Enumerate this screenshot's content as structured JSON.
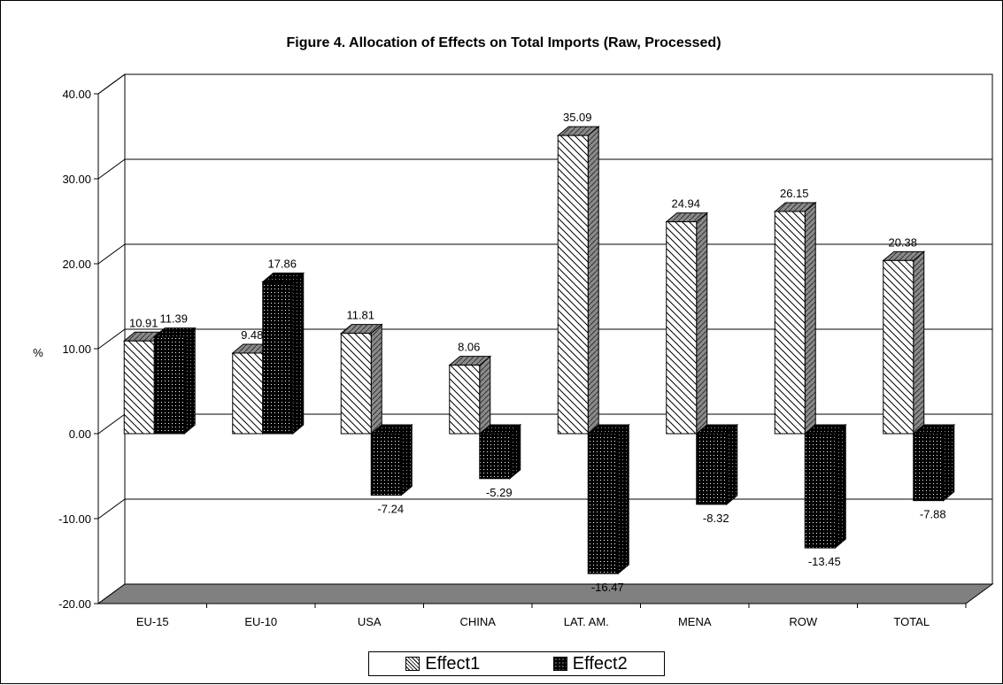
{
  "chart_data": {
    "type": "bar",
    "title": "Figure 4. Allocation of Effects on Total Imports (Raw, Processed)",
    "xlabel": "",
    "ylabel": "%",
    "categories": [
      "EU-15",
      "EU-10",
      "USA",
      "CHINA",
      "LAT. AM.",
      "MENA",
      "ROW",
      "TOTAL"
    ],
    "series": [
      {
        "name": "Effect1",
        "values": [
          10.91,
          9.48,
          11.81,
          8.06,
          35.09,
          24.94,
          26.15,
          20.38
        ],
        "pattern": "diagonal-hatch",
        "color": "#ffffff"
      },
      {
        "name": "Effect2",
        "values": [
          11.39,
          17.86,
          -7.24,
          -5.29,
          -16.47,
          -8.32,
          -13.45,
          -7.88
        ],
        "pattern": "dots",
        "color": "#000000"
      }
    ],
    "value_labels": [
      [
        "10.91",
        "9.48",
        "11.81",
        "8.06",
        "35.09",
        "24.94",
        "26.15",
        "20.38"
      ],
      [
        "11.39",
        "17.86",
        "-7.24",
        "-5.29",
        "-16.47",
        "-8.32",
        "-13.45",
        "-7.88"
      ]
    ],
    "ylim": [
      -20,
      40
    ],
    "yticks": [
      "-20.00",
      "-10.00",
      "0.00",
      "10.00",
      "20.00",
      "30.00",
      "40.00"
    ],
    "grid": true,
    "three_d": true,
    "floor_color": "#808080",
    "legend_position": "bottom"
  }
}
